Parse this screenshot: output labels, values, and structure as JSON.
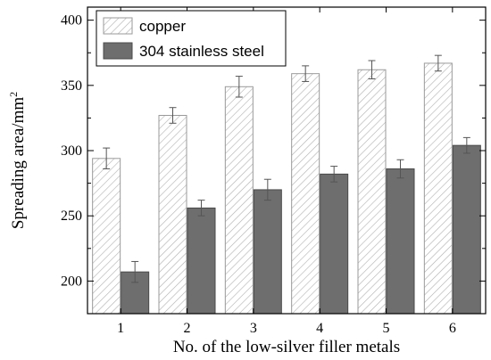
{
  "chart_data": {
    "type": "bar",
    "categories": [
      "1",
      "2",
      "3",
      "4",
      "5",
      "6"
    ],
    "xlabel": "No. of the low-silver filler metals",
    "ylabel_base": "Spreading area/mm",
    "ylabel_superscript": "2",
    "ylim": [
      175,
      410
    ],
    "yticks": [
      "200",
      "250",
      "300",
      "350",
      "400"
    ],
    "grid": false,
    "legend_position": "top-left",
    "series": [
      {
        "name": "copper",
        "pattern": "hatched",
        "color": "#ffffff",
        "stroke": "#9a9a9a",
        "values": [
          294,
          327,
          349,
          359,
          362,
          367
        ],
        "error": [
          8,
          6,
          8,
          6,
          7,
          6
        ]
      },
      {
        "name": "304 stainless steel",
        "pattern": "solid",
        "color": "#6e6e6e",
        "stroke": "#4a4a4a",
        "values": [
          207,
          256,
          270,
          282,
          286,
          304
        ],
        "error": [
          8,
          6,
          8,
          6,
          7,
          6
        ]
      }
    ]
  }
}
